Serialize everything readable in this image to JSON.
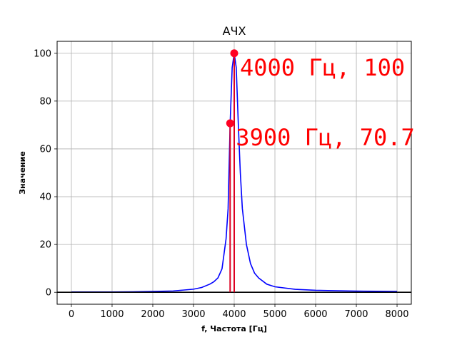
{
  "chart_data": {
    "type": "line",
    "title": "АЧХ",
    "xlabel": "f, Частота [Гц]",
    "ylabel": "Значение",
    "xlim": [
      -350,
      8350
    ],
    "ylim": [
      -5,
      105
    ],
    "xticks": [
      0,
      1000,
      2000,
      3000,
      4000,
      5000,
      6000,
      7000,
      8000
    ],
    "yticks": [
      0,
      20,
      40,
      60,
      80,
      100
    ],
    "grid": true,
    "legend": "none",
    "colors": {
      "curve": "#0000ff",
      "marker": "#ff0022",
      "stem": "#dd0022",
      "annotation": "#ff0000",
      "grid": "#b0b0b0",
      "zero_line": "#000000"
    },
    "series": [
      {
        "x": [
          0,
          500,
          1000,
          1500,
          2000,
          2500,
          3000,
          3200,
          3400,
          3500,
          3600,
          3700,
          3800,
          3850,
          3900,
          3950,
          4000,
          4050,
          4100,
          4150,
          4200,
          4300,
          4400,
          4500,
          4600,
          4800,
          5000,
          5500,
          6000,
          6500,
          7000,
          7500,
          8000
        ],
        "y": [
          0.11,
          0.12,
          0.14,
          0.19,
          0.34,
          0.55,
          1.3,
          2.0,
          3.4,
          4.4,
          6.0,
          9.8,
          22.4,
          35.0,
          70.7,
          94.0,
          100,
          94.0,
          70.7,
          50.0,
          35.0,
          20.0,
          12.0,
          8.0,
          6.0,
          3.4,
          2.3,
          1.25,
          0.84,
          0.65,
          0.51,
          0.42,
          0.36
        ]
      }
    ],
    "highlights": [
      {
        "x": 4000,
        "y": 100,
        "label": "4000 Гц, 100"
      },
      {
        "x": 3900,
        "y": 70.7,
        "label": "3900 Гц, 70.7"
      }
    ],
    "hlines": [
      0
    ]
  }
}
